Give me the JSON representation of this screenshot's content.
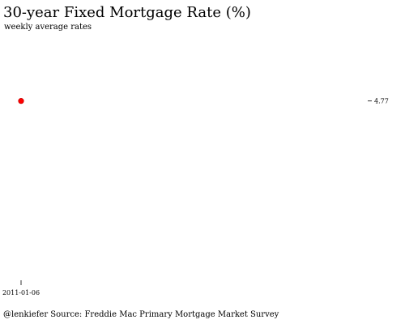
{
  "chart_data": {
    "type": "scatter",
    "title": "30-year Fixed Mortgage Rate (%)",
    "subtitle": "weekly average rates",
    "caption": "@lenkiefer Source: Freddie Mac Primary Mortgage Market Survey",
    "x": [
      "2011-01-06"
    ],
    "values": [
      4.77
    ],
    "x_tick_labels": [
      "2011-01-06"
    ],
    "end_label": "4.77",
    "point_color": "#ff0000",
    "point_outline_color": "#cc0000",
    "grid": false,
    "legend": "none"
  }
}
